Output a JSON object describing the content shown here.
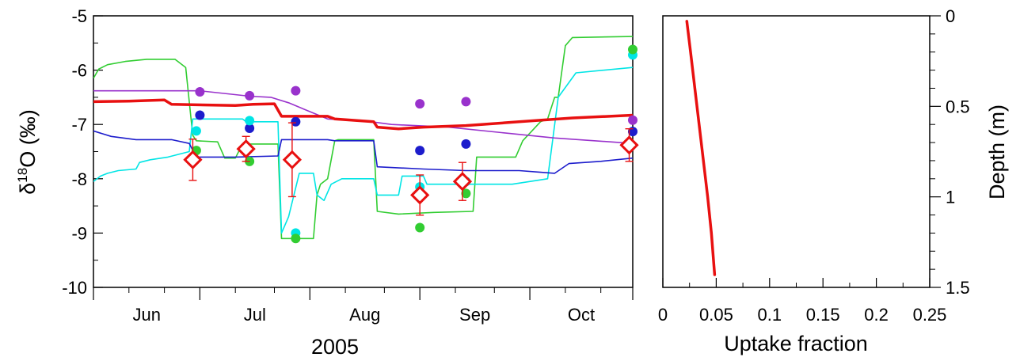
{
  "chart_data": [
    {
      "type": "line",
      "xlabel": "2005",
      "ylabel": "δ18O (‰)",
      "ylabel_parts": {
        "delta": "δ",
        "sup": "18",
        "rest": "O (‰)"
      },
      "xlim": [
        0,
        152
      ],
      "ylim": [
        -10,
        -5
      ],
      "y_ticks": [
        -10,
        -9,
        -8,
        -7,
        -6,
        -5
      ],
      "y_tick_labels": [
        "-10",
        "-9",
        "-8",
        "-7",
        "-6",
        "-5"
      ],
      "x_major_ticks": [
        0,
        30,
        61,
        92,
        123,
        152
      ],
      "x_month_labels": [
        {
          "label": "Jun",
          "x": 15
        },
        {
          "label": "Jul",
          "x": 45.5
        },
        {
          "label": "Aug",
          "x": 76.5
        },
        {
          "label": "Sep",
          "x": 107.5
        },
        {
          "label": "Oct",
          "x": 137.5
        }
      ],
      "x_minor_ticks": [
        10,
        20,
        40,
        51,
        71,
        82,
        102,
        113,
        133,
        143
      ],
      "grid": false,
      "series": [
        {
          "color": "#32cd32",
          "kind": "line",
          "values": [
            [
              0,
              -6.15
            ],
            [
              1.5,
              -5.98
            ],
            [
              4,
              -5.9
            ],
            [
              9,
              -5.84
            ],
            [
              15,
              -5.8
            ],
            [
              23,
              -5.8
            ],
            [
              26,
              -5.95
            ],
            [
              28,
              -7.2
            ],
            [
              29,
              -7.3
            ],
            [
              35,
              -7.32
            ],
            [
              37,
              -7.62
            ],
            [
              40,
              -7.62
            ],
            [
              42,
              -7.36
            ],
            [
              52,
              -7.36
            ],
            [
              53,
              -9.1
            ],
            [
              62,
              -9.1
            ],
            [
              63,
              -8.3
            ],
            [
              64,
              -8.1
            ],
            [
              66,
              -8.0
            ],
            [
              68,
              -7.3
            ],
            [
              69,
              -7.28
            ],
            [
              79,
              -7.28
            ],
            [
              80,
              -8.6
            ],
            [
              86,
              -8.65
            ],
            [
              96,
              -8.62
            ],
            [
              107,
              -8.6
            ],
            [
              108,
              -7.6
            ],
            [
              119,
              -7.6
            ],
            [
              121,
              -7.3
            ],
            [
              126,
              -6.95
            ],
            [
              128,
              -6.9
            ],
            [
              130,
              -6.5
            ],
            [
              131,
              -6.5
            ],
            [
              133,
              -5.55
            ],
            [
              135,
              -5.4
            ],
            [
              152,
              -5.38
            ]
          ]
        },
        {
          "color": "#00e5e5",
          "kind": "line",
          "values": [
            [
              0,
              -8.05
            ],
            [
              2,
              -7.95
            ],
            [
              4,
              -7.9
            ],
            [
              7,
              -7.85
            ],
            [
              12,
              -7.82
            ],
            [
              13,
              -7.7
            ],
            [
              16,
              -7.65
            ],
            [
              21,
              -7.6
            ],
            [
              27,
              -7.5
            ],
            [
              28,
              -6.9
            ],
            [
              42,
              -6.9
            ],
            [
              43,
              -6.95
            ],
            [
              52,
              -6.95
            ],
            [
              53,
              -9.0
            ],
            [
              55,
              -8.7
            ],
            [
              58,
              -7.9
            ],
            [
              62,
              -7.9
            ],
            [
              63,
              -8.3
            ],
            [
              65,
              -8.4
            ],
            [
              67,
              -8.1
            ],
            [
              70,
              -8.0
            ],
            [
              79,
              -8.0
            ],
            [
              80,
              -8.3
            ],
            [
              86,
              -8.3
            ],
            [
              87,
              -7.95
            ],
            [
              93,
              -7.95
            ],
            [
              94,
              -8.1
            ],
            [
              118,
              -8.1
            ],
            [
              128,
              -8.0
            ],
            [
              131,
              -6.5
            ],
            [
              136,
              -6.05
            ],
            [
              152,
              -5.95
            ]
          ]
        },
        {
          "color": "#9932cc",
          "kind": "line",
          "values": [
            [
              0,
              -6.38
            ],
            [
              30,
              -6.38
            ],
            [
              44,
              -6.48
            ],
            [
              50,
              -6.5
            ],
            [
              55,
              -6.6
            ],
            [
              66,
              -6.9
            ],
            [
              76,
              -6.93
            ],
            [
              84,
              -7.0
            ],
            [
              100,
              -7.05
            ],
            [
              115,
              -7.15
            ],
            [
              130,
              -7.25
            ],
            [
              152,
              -7.35
            ]
          ]
        },
        {
          "color": "#1c1ccc",
          "kind": "line",
          "values": [
            [
              0,
              -7.12
            ],
            [
              5,
              -7.22
            ],
            [
              12,
              -7.28
            ],
            [
              22,
              -7.28
            ],
            [
              27,
              -7.35
            ],
            [
              29,
              -7.6
            ],
            [
              40,
              -7.6
            ],
            [
              52,
              -7.58
            ],
            [
              53,
              -7.28
            ],
            [
              66,
              -7.28
            ],
            [
              68,
              -7.3
            ],
            [
              79,
              -7.3
            ],
            [
              80,
              -7.78
            ],
            [
              93,
              -7.82
            ],
            [
              105,
              -7.85
            ],
            [
              120,
              -7.85
            ],
            [
              126,
              -7.88
            ],
            [
              130,
              -7.9
            ],
            [
              134,
              -7.72
            ],
            [
              143,
              -7.68
            ],
            [
              152,
              -7.62
            ]
          ]
        },
        {
          "color": "#e81010",
          "kind": "thick-line",
          "values": [
            [
              0,
              -6.58
            ],
            [
              10,
              -6.57
            ],
            [
              20,
              -6.55
            ],
            [
              22,
              -6.63
            ],
            [
              40,
              -6.65
            ],
            [
              45,
              -6.63
            ],
            [
              51,
              -6.62
            ],
            [
              53,
              -6.85
            ],
            [
              66,
              -6.85
            ],
            [
              68,
              -6.9
            ],
            [
              79,
              -6.95
            ],
            [
              80,
              -7.05
            ],
            [
              86,
              -7.08
            ],
            [
              93,
              -7.05
            ],
            [
              105,
              -7.02
            ],
            [
              120,
              -6.95
            ],
            [
              135,
              -6.88
            ],
            [
              152,
              -6.83
            ]
          ]
        },
        {
          "color": "#9932cc",
          "kind": "points",
          "values": [
            [
              30,
              -6.4
            ],
            [
              44,
              -6.47
            ],
            [
              57,
              -6.38
            ],
            [
              92,
              -6.62
            ],
            [
              105,
              -6.58
            ],
            [
              152,
              -6.92
            ]
          ]
        },
        {
          "color": "#1c1ccc",
          "kind": "points",
          "values": [
            [
              30,
              -6.83
            ],
            [
              44,
              -7.07
            ],
            [
              57,
              -6.95
            ],
            [
              92,
              -7.48
            ],
            [
              105,
              -7.36
            ],
            [
              152,
              -7.13
            ]
          ]
        },
        {
          "color": "#00e5e5",
          "kind": "points",
          "values": [
            [
              29,
              -7.12
            ],
            [
              44,
              -6.93
            ],
            [
              57,
              -9.0
            ],
            [
              92,
              -8.15
            ],
            [
              105,
              -8.05
            ],
            [
              152,
              -5.72
            ]
          ]
        },
        {
          "color": "#32cd32",
          "kind": "points",
          "values": [
            [
              29,
              -7.48
            ],
            [
              44,
              -7.68
            ],
            [
              57,
              -9.1
            ],
            [
              92,
              -8.9
            ],
            [
              105,
              -8.27
            ],
            [
              152,
              -5.62
            ]
          ]
        },
        {
          "color": "#e81010",
          "kind": "diamonds",
          "values": [
            [
              28,
              -7.65
            ],
            [
              43,
              -7.45
            ],
            [
              56,
              -7.65
            ],
            [
              92,
              -8.3
            ],
            [
              104,
              -8.05
            ],
            [
              151,
              -7.38
            ]
          ],
          "errors": [
            [
              -8.03,
              -7.27
            ],
            [
              -7.68,
              -7.22
            ],
            [
              -8.33,
              -6.97
            ],
            [
              -8.67,
              -7.93
            ],
            [
              -8.4,
              -7.7
            ],
            [
              -7.68,
              -7.08
            ]
          ]
        }
      ]
    },
    {
      "type": "line",
      "xlabel": "Uptake fraction",
      "ylabel": "Depth (m)",
      "xlim": [
        0,
        0.25
      ],
      "ylim": [
        1.5,
        0
      ],
      "x_ticks": [
        0,
        0.05,
        0.1,
        0.15,
        0.2,
        0.25
      ],
      "x_tick_labels": [
        "0",
        "0.05",
        "0.1",
        "0.15",
        "0.2",
        "0.25"
      ],
      "x_minor_ticks": [
        0.025,
        0.075,
        0.125,
        0.175,
        0.225
      ],
      "y_ticks": [
        0,
        0.5,
        1,
        1.5
      ],
      "y_tick_labels": [
        "0",
        "0.5",
        "1",
        "1.5"
      ],
      "y_minor_ticks": [
        0.1,
        0.2,
        0.3,
        0.4,
        0.6,
        0.7,
        0.8,
        0.9,
        1.1,
        1.2,
        1.3,
        1.4
      ],
      "grid": false,
      "series": [
        {
          "color": "#e81010",
          "kind": "thick-line",
          "values": [
            [
              0.0225,
              0.03
            ],
            [
              0.026,
              0.2
            ],
            [
              0.03,
              0.4
            ],
            [
              0.034,
              0.6
            ],
            [
              0.038,
              0.8
            ],
            [
              0.042,
              1.0
            ],
            [
              0.0455,
              1.2
            ],
            [
              0.0485,
              1.43
            ]
          ]
        }
      ]
    }
  ]
}
